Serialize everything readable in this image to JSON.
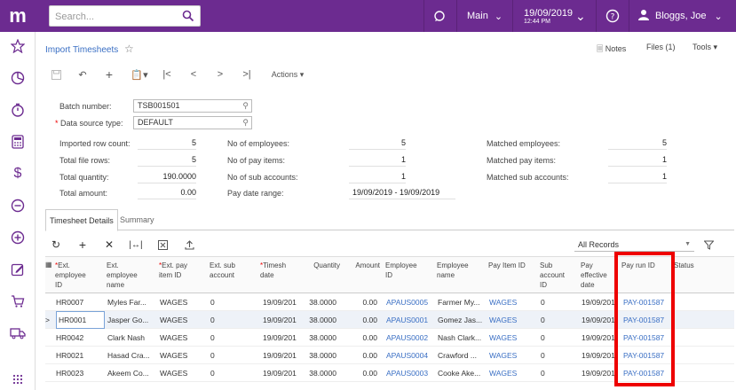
{
  "topbar": {
    "logo": "m",
    "search_placeholder": "Search...",
    "branch": "Main",
    "date": "19/09/2019",
    "time": "12:44 PM",
    "user": "Bloggs, Joe"
  },
  "page": {
    "title": "Import Timesheets",
    "notes": "Notes",
    "files": "Files (1)",
    "tools": "Tools"
  },
  "toolbar": {
    "actions": "Actions"
  },
  "form": {
    "batch_number_label": "Batch number:",
    "batch_number": "TSB001501",
    "data_source_type_label": "Data source type:",
    "data_source_type": "DEFAULT",
    "imported_row_count_label": "Imported row count:",
    "imported_row_count": "5",
    "total_file_rows_label": "Total file rows:",
    "total_file_rows": "5",
    "total_quantity_label": "Total quantity:",
    "total_quantity": "190.0000",
    "total_amount_label": "Total amount:",
    "total_amount": "0.00",
    "no_employees_label": "No of employees:",
    "no_employees": "5",
    "no_pay_items_label": "No of pay items:",
    "no_pay_items": "1",
    "no_sub_accounts_label": "No of sub accounts:",
    "no_sub_accounts": "1",
    "pay_date_range_label": "Pay date range:",
    "pay_date_range": "19/09/2019 - 19/09/2019",
    "matched_employees_label": "Matched employees:",
    "matched_employees": "5",
    "matched_pay_items_label": "Matched pay items:",
    "matched_pay_items": "1",
    "matched_sub_accounts_label": "Matched sub accounts:",
    "matched_sub_accounts": "1"
  },
  "tabs": [
    "Timesheet Details",
    "Summary"
  ],
  "grid": {
    "filter": "All Records",
    "headers": {
      "ext_employee_id": [
        "Ext.",
        "employee",
        "ID"
      ],
      "ext_employee_name": [
        "Ext.",
        "employee",
        "name"
      ],
      "ext_pay_item_id": [
        "Ext. pay",
        "item ID"
      ],
      "ext_sub_account": [
        "Ext. sub",
        "account"
      ],
      "timesheet_date": [
        "Timesh",
        "date"
      ],
      "quantity": [
        "Quantity"
      ],
      "amount": [
        "Amount"
      ],
      "employee_id": [
        "Employee",
        "ID"
      ],
      "employee_name": [
        "Employee",
        "name"
      ],
      "pay_item_id": [
        "Pay Item ID"
      ],
      "sub_account_id": [
        "Sub",
        "account",
        "ID"
      ],
      "pay_effective_date": [
        "Pay",
        "effective",
        "date"
      ],
      "pay_run_id": [
        "Pay run ID"
      ],
      "status": [
        "Status"
      ]
    },
    "rows": [
      {
        "c0": "HR0007",
        "c1": "Myles Far...",
        "c2": "WAGES",
        "c3": "0",
        "c4": "19/09/201",
        "c5": "38.0000",
        "c6": "0.00",
        "c7": "APAUS0005",
        "c8": "Farmer My...",
        "c9": "WAGES",
        "c10": "0",
        "c11": "19/09/201",
        "c12": "PAY-001587"
      },
      {
        "c0": "HR0001",
        "c1": "Jasper Go...",
        "c2": "WAGES",
        "c3": "0",
        "c4": "19/09/201",
        "c5": "38.0000",
        "c6": "0.00",
        "c7": "APAUS0001",
        "c8": "Gomez Jas...",
        "c9": "WAGES",
        "c10": "0",
        "c11": "19/09/201",
        "c12": "PAY-001587"
      },
      {
        "c0": "HR0042",
        "c1": "Clark Nash",
        "c2": "WAGES",
        "c3": "0",
        "c4": "19/09/201",
        "c5": "38.0000",
        "c6": "0.00",
        "c7": "APAUS0002",
        "c8": "Nash Clark...",
        "c9": "WAGES",
        "c10": "0",
        "c11": "19/09/201",
        "c12": "PAY-001587"
      },
      {
        "c0": "HR0021",
        "c1": "Hasad Cra...",
        "c2": "WAGES",
        "c3": "0",
        "c4": "19/09/201",
        "c5": "38.0000",
        "c6": "0.00",
        "c7": "APAUS0004",
        "c8": "Crawford ...",
        "c9": "WAGES",
        "c10": "0",
        "c11": "19/09/201",
        "c12": "PAY-001587"
      },
      {
        "c0": "HR0023",
        "c1": "Akeem Co...",
        "c2": "WAGES",
        "c3": "0",
        "c4": "19/09/201",
        "c5": "38.0000",
        "c6": "0.00",
        "c7": "APAUS0003",
        "c8": "Cooke Ake...",
        "c9": "WAGES",
        "c10": "0",
        "c11": "19/09/201",
        "c12": "PAY-001587"
      }
    ]
  }
}
